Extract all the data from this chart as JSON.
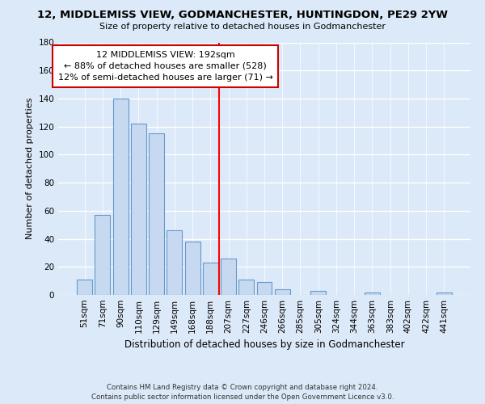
{
  "title": "12, MIDDLEMISS VIEW, GODMANCHESTER, HUNTINGDON, PE29 2YW",
  "subtitle": "Size of property relative to detached houses in Godmanchester",
  "xlabel": "Distribution of detached houses by size in Godmanchester",
  "ylabel": "Number of detached properties",
  "bar_labels": [
    "51sqm",
    "71sqm",
    "90sqm",
    "110sqm",
    "129sqm",
    "149sqm",
    "168sqm",
    "188sqm",
    "207sqm",
    "227sqm",
    "246sqm",
    "266sqm",
    "285sqm",
    "305sqm",
    "324sqm",
    "344sqm",
    "363sqm",
    "383sqm",
    "402sqm",
    "422sqm",
    "441sqm"
  ],
  "bar_values": [
    11,
    57,
    140,
    122,
    115,
    46,
    38,
    23,
    26,
    11,
    9,
    4,
    0,
    3,
    0,
    0,
    2,
    0,
    0,
    0,
    2
  ],
  "bar_color": "#c6d9f0",
  "bar_edge_color": "#6699cc",
  "vline_x": 7.5,
  "vline_color": "red",
  "annotation_title": "12 MIDDLEMISS VIEW: 192sqm",
  "annotation_line1": "← 88% of detached houses are smaller (528)",
  "annotation_line2": "12% of semi-detached houses are larger (71) →",
  "annotation_box_color": "#ffffff",
  "annotation_box_edge": "#cc0000",
  "ylim": [
    0,
    180
  ],
  "yticks": [
    0,
    20,
    40,
    60,
    80,
    100,
    120,
    140,
    160,
    180
  ],
  "footer_line1": "Contains HM Land Registry data © Crown copyright and database right 2024.",
  "footer_line2": "Contains public sector information licensed under the Open Government Licence v3.0.",
  "bg_color": "#dce9f8"
}
